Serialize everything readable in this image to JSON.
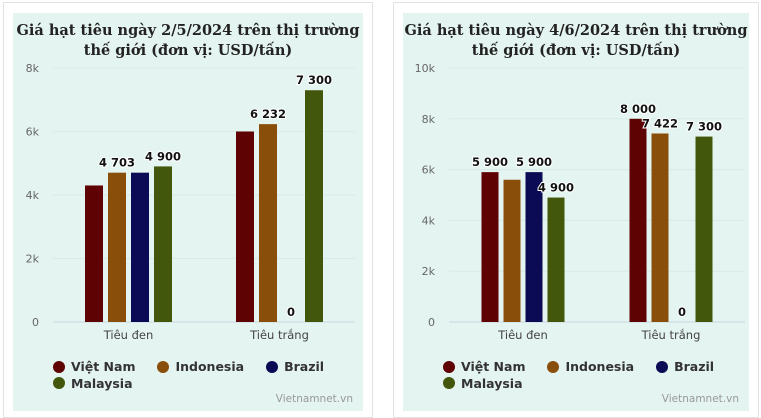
{
  "colors": {
    "Việt Nam": "#5e0203",
    "Indonesia": "#8a4e0b",
    "Brazil": "#0b0b55",
    "Malaysia": "#43570c"
  },
  "credit": "Vietnamnet.vn",
  "chart_data": [
    {
      "type": "bar",
      "title": "Giá hạt tiêu ngày 2/5/2024 trên thị trường thế giới (đơn vị: USD/tấn)",
      "title_lines": [
        "Giá hạt tiêu ngày 2/5/2024 trên thị trường",
        "thế giới (đơn vị: USD/tấn)"
      ],
      "categories": [
        "Tiêu đen",
        "Tiêu trắng"
      ],
      "ylim": [
        0,
        8000
      ],
      "yticks": [
        0,
        2000,
        4000,
        6000,
        8000
      ],
      "ytick_labels": [
        "0",
        "2k",
        "4k",
        "6k",
        "8k"
      ],
      "grid": true,
      "legend": "bottom-left",
      "series": [
        {
          "name": "Việt Nam",
          "values": [
            4300,
            6000
          ],
          "labels": [
            null,
            null
          ]
        },
        {
          "name": "Indonesia",
          "values": [
            4703,
            6232
          ],
          "labels": [
            "4 703",
            "6 232"
          ]
        },
        {
          "name": "Brazil",
          "values": [
            4703,
            0
          ],
          "labels": [
            null,
            "0"
          ]
        },
        {
          "name": "Malaysia",
          "values": [
            4900,
            7300
          ],
          "labels": [
            "4 900",
            "7 300"
          ]
        }
      ]
    },
    {
      "type": "bar",
      "title": "Giá hạt tiêu ngày 4/6/2024 trên thị trường thế giới (đơn vị: USD/tấn)",
      "title_lines": [
        "Giá hạt tiêu ngày 4/6/2024 trên thị trường",
        "thế giới (đơn vị: USD/tấn)"
      ],
      "categories": [
        "Tiêu đen",
        "Tiêu trắng"
      ],
      "ylim": [
        0,
        10000
      ],
      "yticks": [
        0,
        2000,
        4000,
        6000,
        8000,
        10000
      ],
      "ytick_labels": [
        "0",
        "2k",
        "4k",
        "6k",
        "8k",
        "10k"
      ],
      "grid": true,
      "legend": "bottom-left",
      "series": [
        {
          "name": "Việt Nam",
          "values": [
            5900,
            8000
          ],
          "labels": [
            "5 900",
            "8 000"
          ]
        },
        {
          "name": "Indonesia",
          "values": [
            5600,
            7422
          ],
          "labels": [
            null,
            "7 422"
          ]
        },
        {
          "name": "Brazil",
          "values": [
            5900,
            0
          ],
          "labels": [
            "5 900",
            "0"
          ]
        },
        {
          "name": "Malaysia",
          "values": [
            4900,
            7300
          ],
          "labels": [
            "4 900",
            "7 300"
          ]
        }
      ]
    }
  ]
}
